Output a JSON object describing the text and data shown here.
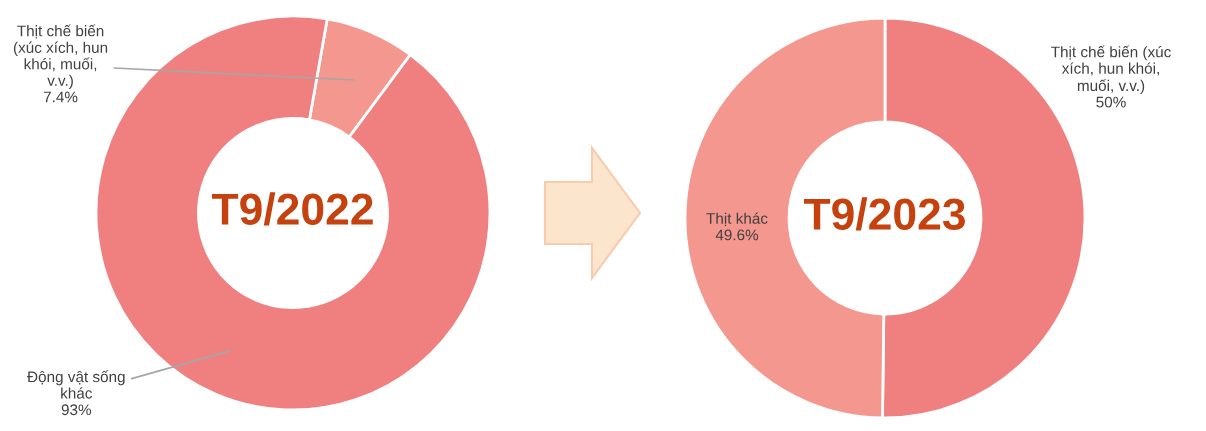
{
  "chart_data": [
    {
      "type": "donut",
      "title": "T9/2022",
      "categories": [
        "Thịt chế biến\n(xúc xích, hun\nkhói, muối,\nv.v.)",
        "Động vật sống\nkhác"
      ],
      "values": [
        7.4,
        93
      ],
      "colors": [
        "#f4978e",
        "#f08080"
      ],
      "value_labels": [
        "7.4%",
        "93%"
      ]
    },
    {
      "type": "donut",
      "title": "T9/2023",
      "categories": [
        "Thịt chế biến (xúc\nxích, hun khói,\nmuối, v.v.)",
        "Thịt khác"
      ],
      "values": [
        50,
        49.6
      ],
      "colors": [
        "#f08080",
        "#f4978e"
      ],
      "value_labels": [
        "50%",
        "49.6%"
      ]
    }
  ]
}
